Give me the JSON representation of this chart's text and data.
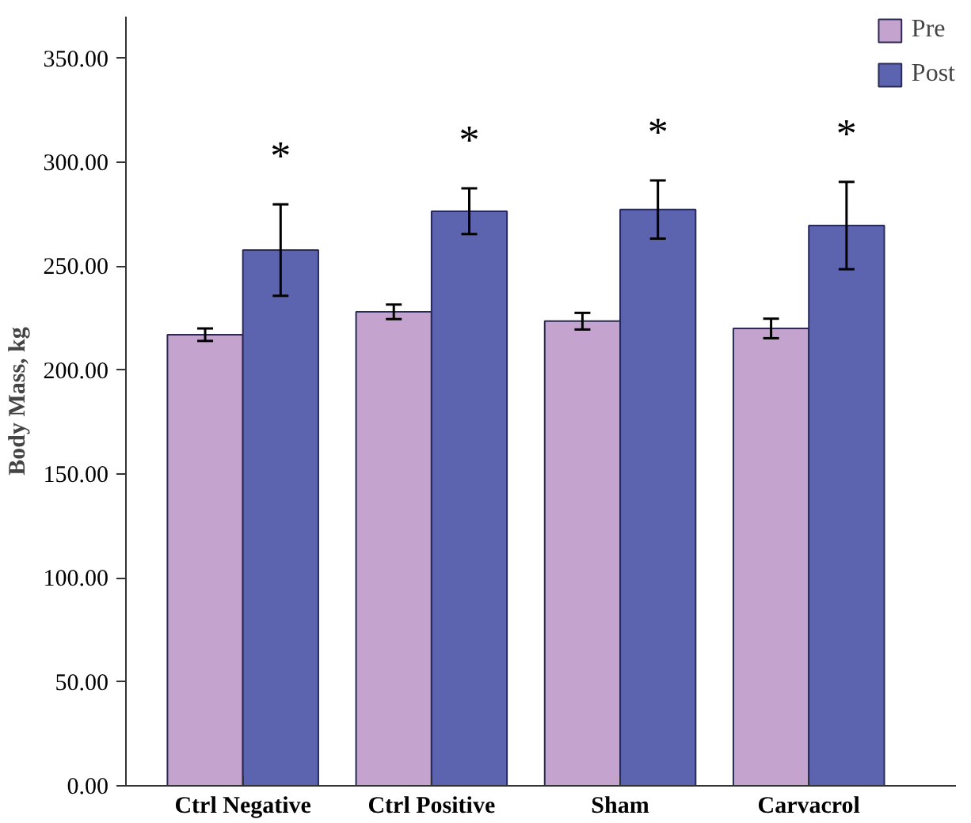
{
  "chart_data": {
    "type": "bar",
    "ylabel": "Body Mass, kg",
    "categories": [
      "Ctrl Negative",
      "Ctrl Positive",
      "Sham",
      "Carvacrol"
    ],
    "series": [
      {
        "name": "Pre",
        "color": "#c4a3cf",
        "values": [
          217,
          228,
          223.5,
          220
        ],
        "errors": [
          3,
          3.5,
          4,
          4.7
        ]
      },
      {
        "name": "Post",
        "color": "#5c64b0",
        "values": [
          257.7,
          276.4,
          277.2,
          269.5
        ],
        "errors": [
          22,
          11,
          14,
          21
        ]
      }
    ],
    "ylim": [
      0,
      370
    ],
    "yticks": [
      {
        "value": 0,
        "label": "0.00"
      },
      {
        "value": 50,
        "label": "50.00"
      },
      {
        "value": 100,
        "label": "100.00"
      },
      {
        "value": 150,
        "label": "150.00"
      },
      {
        "value": 200,
        "label": "200.00"
      },
      {
        "value": 250,
        "label": "250.00"
      },
      {
        "value": 300,
        "label": "300.00"
      },
      {
        "value": 350,
        "label": "350.00"
      }
    ],
    "annotations": [
      "*",
      "*",
      "*",
      "*"
    ],
    "grid": false,
    "legend": "top right"
  }
}
